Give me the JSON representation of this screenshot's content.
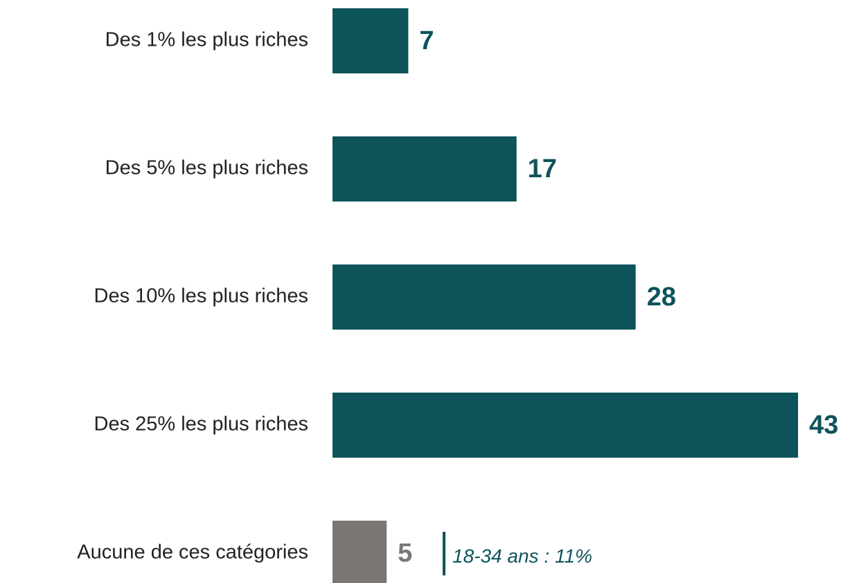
{
  "chart_data": {
    "type": "bar",
    "orientation": "horizontal",
    "categories": [
      "Des 1% les plus riches",
      "Des 5% les plus riches",
      "Des 10% les plus riches",
      "Des 25% les plus riches",
      "Aucune de ces catégories"
    ],
    "values": [
      7,
      17,
      28,
      43,
      5
    ],
    "colors": [
      "#0d535a",
      "#0d535a",
      "#0d535a",
      "#0d535a",
      "#7a7674"
    ],
    "annotation": "18-34 ans : 11%"
  }
}
